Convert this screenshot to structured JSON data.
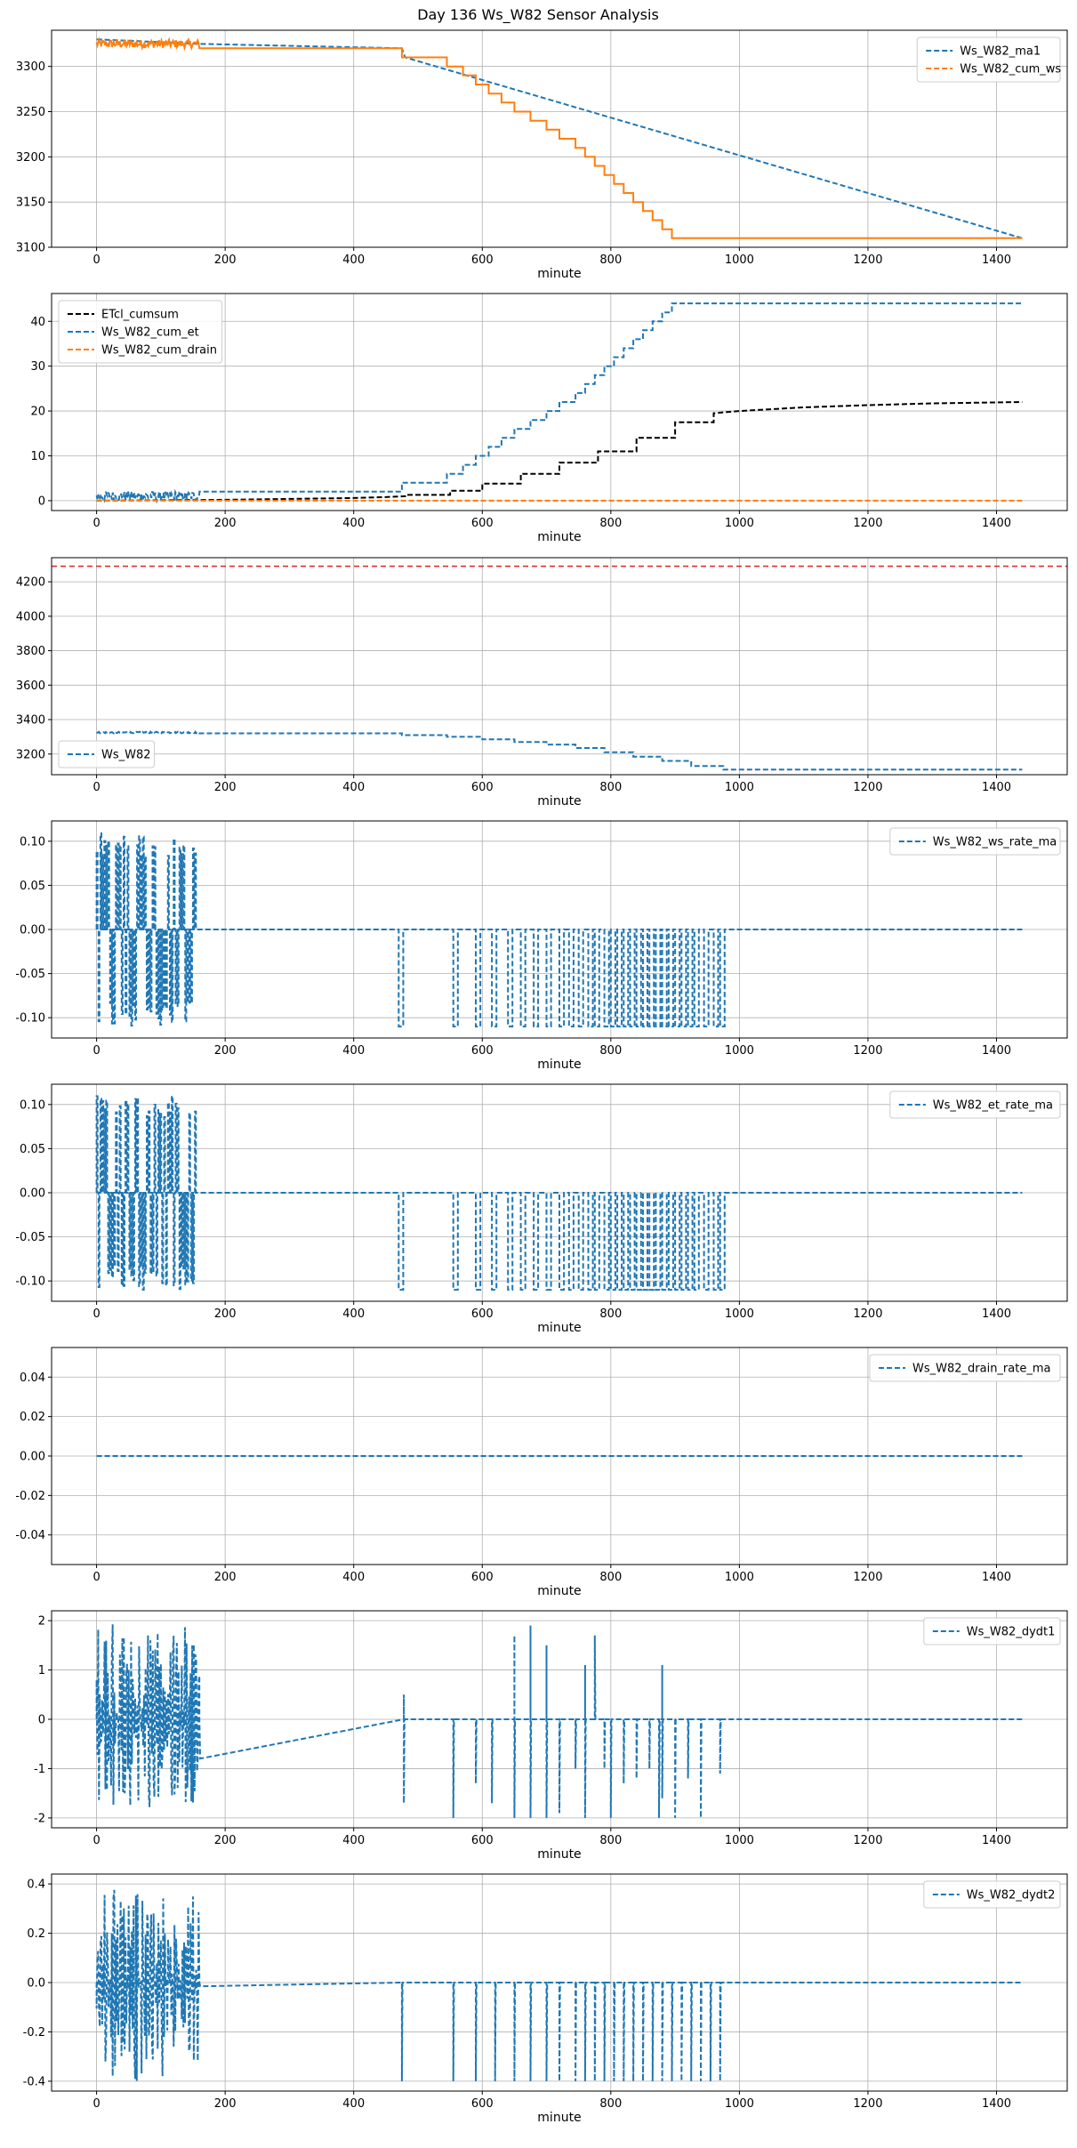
{
  "figure": {
    "title": "Day 136 Ws_W82 Sensor Analysis"
  },
  "colors": {
    "blue": "#1f77b4",
    "orange": "#ff7f0e",
    "black": "#000000",
    "red": "#d62728",
    "grid": "#b0b0b0"
  },
  "chart_data": [
    {
      "type": "line",
      "xlabel": "minute",
      "xlim": [
        -70,
        1510
      ],
      "xticks": [
        0,
        200,
        400,
        600,
        800,
        1000,
        1200,
        1400
      ],
      "ylim": [
        3100,
        3340
      ],
      "yticks": [
        3100,
        3150,
        3200,
        3250,
        3300
      ],
      "ytick_labels": [
        "3100",
        "3150",
        "3200",
        "3250",
        "3300"
      ],
      "legend": "top-right",
      "series": [
        {
          "name": "Ws_W82_ma1",
          "color": "#1f77b4",
          "style": "dashed",
          "x": [
            0,
            160,
            475,
            480,
            1440
          ],
          "y": [
            3330,
            3325,
            3320,
            3310,
            3110
          ]
        },
        {
          "name": "Ws_W82_cum_ws",
          "color": "#ff7f0e",
          "style": "solid",
          "noise": {
            "x0": 0,
            "x1": 160,
            "base": 3325,
            "amp": 5
          },
          "x": [
            160,
            475,
            475,
            545,
            545,
            570,
            570,
            590,
            590,
            610,
            610,
            630,
            630,
            650,
            650,
            675,
            675,
            700,
            700,
            720,
            720,
            745,
            745,
            760,
            760,
            775,
            775,
            790,
            790,
            805,
            805,
            820,
            820,
            835,
            835,
            850,
            850,
            865,
            865,
            880,
            880,
            895,
            895,
            910,
            910,
            925,
            925,
            940,
            940,
            960,
            960,
            975,
            975,
            1440
          ],
          "y": [
            3320,
            3320,
            3310,
            3310,
            3300,
            3300,
            3290,
            3290,
            3280,
            3280,
            3270,
            3270,
            3260,
            3260,
            3250,
            3250,
            3240,
            3240,
            3230,
            3230,
            3220,
            3220,
            3210,
            3210,
            3200,
            3200,
            3190,
            3190,
            3180,
            3180,
            3170,
            3170,
            3160,
            3160,
            3150,
            3150,
            3140,
            3140,
            3130,
            3130,
            3120,
            3120,
            3110,
            3110,
            3110,
            3110,
            3110,
            3110,
            3110,
            3110,
            3110,
            3110,
            3110,
            3110
          ]
        }
      ]
    },
    {
      "type": "line",
      "xlabel": "minute",
      "xlim": [
        -70,
        1510
      ],
      "xticks": [
        0,
        200,
        400,
        600,
        800,
        1000,
        1200,
        1400
      ],
      "ylim": [
        -2.2,
        46.2
      ],
      "yticks": [
        0,
        10,
        20,
        30,
        40
      ],
      "ytick_labels": [
        "0",
        "10",
        "20",
        "30",
        "40"
      ],
      "legend": "top-left",
      "series": [
        {
          "name": "ETcl_cumsum",
          "color": "#000000",
          "style": "dashed",
          "x": [
            0,
            200,
            300,
            400,
            450,
            480,
            480,
            550,
            550,
            600,
            600,
            660,
            660,
            720,
            720,
            780,
            780,
            840,
            840,
            900,
            900,
            960,
            960,
            1000,
            1100,
            1200,
            1300,
            1440
          ],
          "y": [
            0,
            0.2,
            0.4,
            0.6,
            0.8,
            1.0,
            1.3,
            1.3,
            2.2,
            2.2,
            3.8,
            3.8,
            6.0,
            6.0,
            8.5,
            8.5,
            11.0,
            11.0,
            14.0,
            14.0,
            17.5,
            17.5,
            19.5,
            20.0,
            20.8,
            21.3,
            21.7,
            22.0
          ]
        },
        {
          "name": "Ws_W82_cum_et",
          "color": "#1f77b4",
          "style": "dashed",
          "noise": {
            "x0": 0,
            "x1": 160,
            "base": 1.0,
            "amp": 1.2
          },
          "x": [
            160,
            475,
            475,
            545,
            545,
            570,
            570,
            590,
            590,
            610,
            610,
            630,
            630,
            650,
            650,
            675,
            675,
            700,
            700,
            720,
            720,
            745,
            745,
            760,
            760,
            775,
            775,
            790,
            790,
            805,
            805,
            820,
            820,
            835,
            835,
            850,
            850,
            865,
            865,
            880,
            880,
            895,
            895,
            910,
            910,
            925,
            925,
            940,
            940,
            960,
            960,
            975,
            975,
            1440
          ],
          "y": [
            2,
            2,
            4,
            4,
            6,
            6,
            8,
            8,
            10,
            10,
            12,
            12,
            14,
            14,
            16,
            16,
            18,
            18,
            20,
            20,
            22,
            22,
            24,
            24,
            26,
            26,
            28,
            28,
            30,
            30,
            32,
            32,
            34,
            34,
            36,
            36,
            38,
            38,
            40,
            40,
            42,
            42,
            44,
            44,
            44,
            44,
            44,
            44,
            44,
            44,
            44,
            44,
            44,
            44
          ]
        },
        {
          "name": "Ws_W82_cum_drain",
          "color": "#ff7f0e",
          "style": "dashed",
          "x": [
            0,
            1440
          ],
          "y": [
            0,
            0
          ]
        }
      ]
    },
    {
      "type": "line",
      "xlabel": "minute",
      "xlim": [
        -70,
        1510
      ],
      "xticks": [
        0,
        200,
        400,
        600,
        800,
        1000,
        1200,
        1400
      ],
      "ylim": [
        3080,
        4340
      ],
      "yticks": [
        3200,
        3400,
        3600,
        3800,
        4000,
        4200
      ],
      "ytick_labels": [
        "3200",
        "3400",
        "3600",
        "3800",
        "4000",
        "4200"
      ],
      "legend": "bottom-left",
      "hline": {
        "y": 4290,
        "color": "#d62728",
        "style": "dashed"
      },
      "series": [
        {
          "name": "Ws_W82",
          "color": "#1f77b4",
          "style": "dashed",
          "noise": {
            "x0": 0,
            "x1": 160,
            "base": 3325,
            "amp": 5
          },
          "x": [
            160,
            475,
            475,
            545,
            545,
            600,
            600,
            650,
            650,
            700,
            700,
            745,
            745,
            790,
            790,
            835,
            835,
            880,
            880,
            925,
            925,
            975,
            975,
            1440
          ],
          "y": [
            3320,
            3320,
            3310,
            3310,
            3300,
            3300,
            3285,
            3285,
            3270,
            3270,
            3255,
            3255,
            3235,
            3235,
            3210,
            3210,
            3185,
            3185,
            3160,
            3160,
            3130,
            3130,
            3110,
            3110
          ]
        }
      ]
    },
    {
      "type": "line",
      "xlabel": "minute",
      "xlim": [
        -70,
        1510
      ],
      "xticks": [
        0,
        200,
        400,
        600,
        800,
        1000,
        1200,
        1400
      ],
      "ylim": [
        -0.123,
        0.123
      ],
      "yticks": [
        -0.1,
        -0.05,
        0.0,
        0.05,
        0.1
      ],
      "ytick_labels": [
        "-0.10",
        "-0.05",
        "0.00",
        "0.05",
        "0.10"
      ],
      "legend": "top-right",
      "series": [
        {
          "name": "Ws_W82_ws_rate_ma",
          "color": "#1f77b4",
          "style": "dashed",
          "pulses": {
            "active_start": 0,
            "active_end": 155,
            "amp": 0.11,
            "step_times": [
              470,
              555,
              590,
              615,
              640,
              660,
              680,
              700,
              720,
              735,
              750,
              765,
              775,
              790,
              800,
              810,
              820,
              830,
              840,
              850,
              860,
              870,
              880,
              890,
              900,
              910,
              920,
              930,
              945,
              960,
              970
            ],
            "pulse_value": -0.11,
            "end_x": 1440
          }
        }
      ]
    },
    {
      "type": "line",
      "xlabel": "minute",
      "xlim": [
        -70,
        1510
      ],
      "xticks": [
        0,
        200,
        400,
        600,
        800,
        1000,
        1200,
        1400
      ],
      "ylim": [
        -0.123,
        0.123
      ],
      "yticks": [
        -0.1,
        -0.05,
        0.0,
        0.05,
        0.1
      ],
      "ytick_labels": [
        "-0.10",
        "-0.05",
        "0.00",
        "0.05",
        "0.10"
      ],
      "legend": "top-right",
      "series": [
        {
          "name": "Ws_W82_et_rate_ma",
          "color": "#1f77b4",
          "style": "dashed",
          "pulses": {
            "active_start": 0,
            "active_end": 155,
            "amp": 0.11,
            "step_times": [
              470,
              555,
              590,
              615,
              640,
              660,
              680,
              700,
              720,
              735,
              750,
              765,
              775,
              790,
              800,
              810,
              820,
              830,
              840,
              850,
              860,
              870,
              880,
              890,
              900,
              910,
              920,
              930,
              945,
              960,
              970
            ],
            "pulse_value": -0.11,
            "end_x": 1440
          }
        }
      ]
    },
    {
      "type": "line",
      "xlabel": "minute",
      "xlim": [
        -70,
        1510
      ],
      "xticks": [
        0,
        200,
        400,
        600,
        800,
        1000,
        1200,
        1400
      ],
      "ylim": [
        -0.055,
        0.055
      ],
      "yticks": [
        -0.04,
        -0.02,
        0.0,
        0.02,
        0.04
      ],
      "ytick_labels": [
        "-0.04",
        "-0.02",
        "0.00",
        "0.02",
        "0.04"
      ],
      "legend": "top-right",
      "series": [
        {
          "name": "Ws_W82_drain_rate_ma",
          "color": "#1f77b4",
          "style": "dashed",
          "x": [
            0,
            1440
          ],
          "y": [
            0,
            0
          ]
        }
      ]
    },
    {
      "type": "line",
      "xlabel": "minute",
      "xlim": [
        -70,
        1510
      ],
      "xticks": [
        0,
        200,
        400,
        600,
        800,
        1000,
        1200,
        1400
      ],
      "ylim": [
        -2.2,
        2.2
      ],
      "yticks": [
        -2,
        -1,
        0,
        1,
        2
      ],
      "ytick_labels": [
        "-2",
        "-1",
        "0",
        "1",
        "2"
      ],
      "legend": "top-right",
      "series": [
        {
          "name": "Ws_W82_dydt1",
          "color": "#1f77b4",
          "style": "dashed",
          "spikes": {
            "active_start": 0,
            "active_end": 160,
            "amp": 2.0,
            "events": [
              [
                478,
                0.5
              ],
              [
                478,
                -1.7
              ],
              [
                555,
                -2.0
              ],
              [
                590,
                -1.3
              ],
              [
                615,
                -1.7
              ],
              [
                650,
                1.7
              ],
              [
                650,
                -2.0
              ],
              [
                675,
                1.9
              ],
              [
                675,
                -2.0
              ],
              [
                700,
                1.5
              ],
              [
                700,
                -2.0
              ],
              [
                720,
                -1.9
              ],
              [
                745,
                -1.0
              ],
              [
                760,
                1.1
              ],
              [
                760,
                -2.0
              ],
              [
                775,
                1.7
              ],
              [
                790,
                -1.0
              ],
              [
                800,
                -2.0
              ],
              [
                820,
                -1.3
              ],
              [
                840,
                -1.2
              ],
              [
                860,
                -1.0
              ],
              [
                875,
                -2.0
              ],
              [
                880,
                1.1
              ],
              [
                880,
                -1.6
              ],
              [
                900,
                -2.0
              ],
              [
                920,
                -1.2
              ],
              [
                940,
                -2.0
              ],
              [
                970,
                -1.1
              ]
            ],
            "end_x": 1440
          }
        }
      ]
    },
    {
      "type": "line",
      "xlabel": "minute",
      "xlim": [
        -70,
        1510
      ],
      "xticks": [
        0,
        200,
        400,
        600,
        800,
        1000,
        1200,
        1400
      ],
      "ylim": [
        -0.44,
        0.44
      ],
      "yticks": [
        -0.4,
        -0.2,
        0.0,
        0.2,
        0.4
      ],
      "ytick_labels": [
        "-0.4",
        "-0.2",
        "0.0",
        "0.2",
        "0.4"
      ],
      "legend": "top-right",
      "series": [
        {
          "name": "Ws_W82_dydt2",
          "color": "#1f77b4",
          "style": "dashed",
          "spikes": {
            "active_start": 0,
            "active_end": 160,
            "amp": 0.4,
            "events": [
              [
                475,
                -0.4
              ],
              [
                555,
                -0.4
              ],
              [
                590,
                -0.4
              ],
              [
                620,
                -0.4
              ],
              [
                650,
                -0.4
              ],
              [
                675,
                -0.4
              ],
              [
                700,
                -0.4
              ],
              [
                720,
                -0.4
              ],
              [
                745,
                -0.4
              ],
              [
                760,
                -0.4
              ],
              [
                775,
                -0.4
              ],
              [
                790,
                -0.4
              ],
              [
                805,
                -0.4
              ],
              [
                820,
                -0.4
              ],
              [
                835,
                -0.4
              ],
              [
                850,
                -0.4
              ],
              [
                865,
                -0.4
              ],
              [
                880,
                -0.4
              ],
              [
                895,
                -0.4
              ],
              [
                910,
                -0.4
              ],
              [
                925,
                -0.4
              ],
              [
                940,
                -0.4
              ],
              [
                955,
                -0.4
              ],
              [
                970,
                -0.4
              ]
            ],
            "end_x": 1440
          }
        }
      ]
    }
  ]
}
